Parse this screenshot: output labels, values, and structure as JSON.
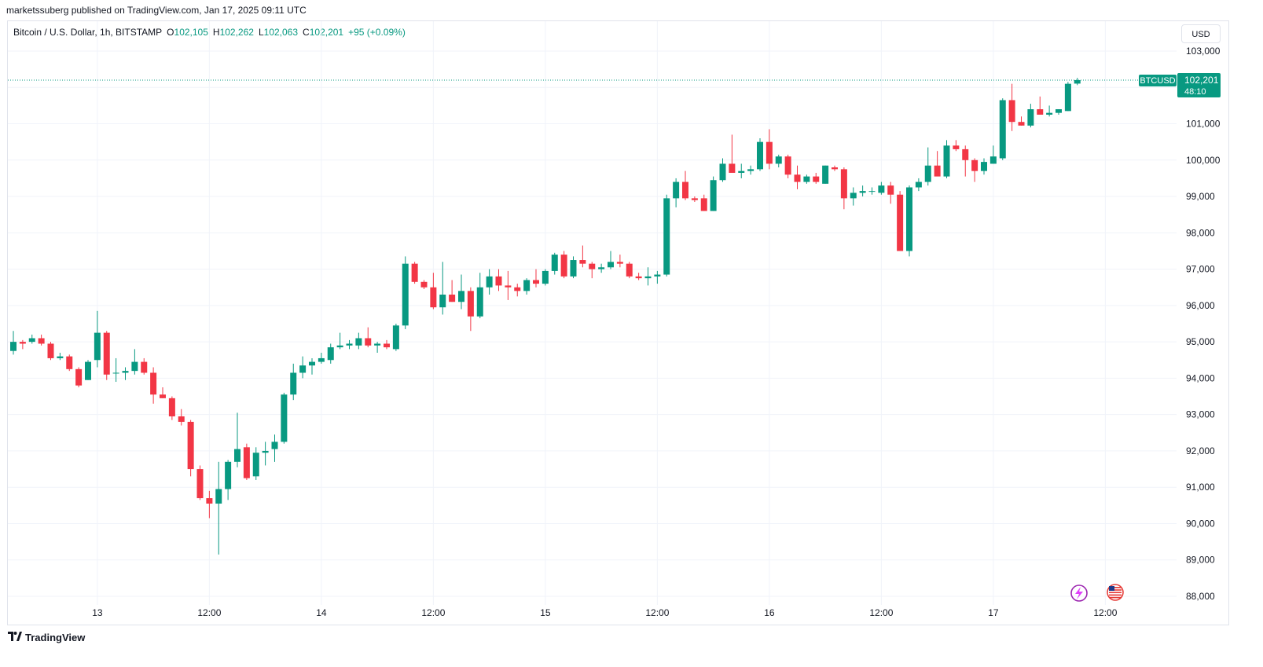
{
  "publisher_line": "marketssuberg published on TradingView.com, Jan 17, 2025 09:11 UTC",
  "legend": {
    "symbol_desc": "Bitcoin / U.S. Dollar, 1h, BITSTAMP",
    "o_label": "O",
    "o_value": "102,105",
    "h_label": "H",
    "h_value": "102,262",
    "l_label": "L",
    "l_value": "102,063",
    "c_label": "C",
    "c_value": "102,201",
    "change": "+95 (+0.09%)"
  },
  "currency_button": "USD",
  "price_tag": {
    "symbol": "BTCUSD",
    "price": "102,201",
    "countdown": "48:10"
  },
  "footer": {
    "brand": "TradingView"
  },
  "colors": {
    "up": "#089981",
    "down": "#f23645",
    "grid": "#f0f3fa",
    "text": "#131722",
    "axis_text": "#131722"
  },
  "icons": [
    "lightning-icon",
    "us-flag-icon",
    "tradingview-logo-icon"
  ],
  "chart_data": {
    "type": "candlestick",
    "timeframe": "1h",
    "ylim": [
      88000,
      103600
    ],
    "y_ticks": [
      {
        "value": 103000,
        "label": "103,000"
      },
      {
        "value": 102000,
        "label": "102,000"
      },
      {
        "value": 101000,
        "label": "101,000"
      },
      {
        "value": 100000,
        "label": "100,000"
      },
      {
        "value": 99000,
        "label": "99,000"
      },
      {
        "value": 98000,
        "label": "98,000"
      },
      {
        "value": 97000,
        "label": "97,000"
      },
      {
        "value": 96000,
        "label": "96,000"
      },
      {
        "value": 95000,
        "label": "95,000"
      },
      {
        "value": 94000,
        "label": "94,000"
      },
      {
        "value": 93000,
        "label": "93,000"
      },
      {
        "value": 92000,
        "label": "92,000"
      },
      {
        "value": 91000,
        "label": "91,000"
      },
      {
        "value": 90000,
        "label": "90,000"
      },
      {
        "value": 89000,
        "label": "89,000"
      },
      {
        "value": 88000,
        "label": "88,000"
      }
    ],
    "x_ticks": [
      {
        "bar": 9,
        "label": "13"
      },
      {
        "bar": 21,
        "label": "12:00"
      },
      {
        "bar": 33,
        "label": "14"
      },
      {
        "bar": 45,
        "label": "12:00"
      },
      {
        "bar": 57,
        "label": "15"
      },
      {
        "bar": 69,
        "label": "12:00"
      },
      {
        "bar": 81,
        "label": "16"
      },
      {
        "bar": 93,
        "label": "12:00"
      },
      {
        "bar": 105,
        "label": "17"
      },
      {
        "bar": 117,
        "label": "12:00"
      }
    ],
    "last_price": 102201,
    "candles": [
      [
        94750,
        95300,
        94650,
        95000
      ],
      [
        95000,
        95050,
        94800,
        94950
      ],
      [
        95000,
        95200,
        94950,
        95100
      ],
      [
        95100,
        95200,
        94900,
        94950
      ],
      [
        94950,
        95000,
        94500,
        94550
      ],
      [
        94550,
        94700,
        94500,
        94600
      ],
      [
        94600,
        94650,
        94200,
        94250
      ],
      [
        94250,
        94300,
        93750,
        93800
      ],
      [
        93950,
        94500,
        93950,
        94450
      ],
      [
        94500,
        95850,
        94300,
        95250
      ],
      [
        95250,
        95300,
        93950,
        94100
      ],
      [
        94150,
        94550,
        93900,
        94150
      ],
      [
        94150,
        94300,
        93950,
        94200
      ],
      [
        94200,
        94800,
        94100,
        94450
      ],
      [
        94450,
        94550,
        94100,
        94150
      ],
      [
        94150,
        94300,
        93300,
        93550
      ],
      [
        93550,
        93750,
        93450,
        93450
      ],
      [
        93450,
        93500,
        92850,
        92950
      ],
      [
        92950,
        93150,
        92700,
        92800
      ],
      [
        92800,
        92850,
        91300,
        91500
      ],
      [
        91500,
        91600,
        90650,
        90700
      ],
      [
        90700,
        90900,
        90150,
        90550
      ],
      [
        90550,
        91700,
        89150,
        90950
      ],
      [
        90950,
        91750,
        90650,
        91700
      ],
      [
        91700,
        93050,
        91550,
        92050
      ],
      [
        92100,
        92200,
        91200,
        91250
      ],
      [
        91300,
        92100,
        91200,
        91950
      ],
      [
        91950,
        92250,
        91600,
        92000
      ],
      [
        92050,
        92450,
        91700,
        92250
      ],
      [
        92250,
        93600,
        92200,
        93550
      ],
      [
        93550,
        94400,
        93400,
        94150
      ],
      [
        94150,
        94600,
        94000,
        94350
      ],
      [
        94350,
        94550,
        94100,
        94450
      ],
      [
        94450,
        94700,
        94400,
        94550
      ],
      [
        94500,
        94950,
        94400,
        94850
      ],
      [
        94850,
        95250,
        94800,
        94900
      ],
      [
        94900,
        95050,
        94800,
        94950
      ],
      [
        94900,
        95250,
        94800,
        95100
      ],
      [
        95100,
        95400,
        94850,
        94900
      ],
      [
        94900,
        95000,
        94700,
        94950
      ],
      [
        94950,
        95050,
        94800,
        94850
      ],
      [
        94800,
        95500,
        94750,
        95450
      ],
      [
        95450,
        97350,
        95350,
        97150
      ],
      [
        97150,
        97200,
        96600,
        96650
      ],
      [
        96650,
        96700,
        96450,
        96500
      ],
      [
        96500,
        96900,
        95900,
        95950
      ],
      [
        95950,
        97200,
        95750,
        96300
      ],
      [
        96300,
        96700,
        96100,
        96100
      ],
      [
        96100,
        96850,
        95900,
        96400
      ],
      [
        96400,
        96500,
        95300,
        95700
      ],
      [
        95700,
        96900,
        95650,
        96500
      ],
      [
        96500,
        97000,
        96300,
        96800
      ],
      [
        96800,
        97000,
        96400,
        96550
      ],
      [
        96550,
        96950,
        96150,
        96500
      ],
      [
        96500,
        96600,
        96250,
        96400
      ],
      [
        96400,
        96750,
        96300,
        96700
      ],
      [
        96700,
        97000,
        96500,
        96600
      ],
      [
        96600,
        97000,
        96550,
        96950
      ],
      [
        96950,
        97450,
        96850,
        97400
      ],
      [
        97400,
        97500,
        96750,
        96800
      ],
      [
        96800,
        97350,
        96750,
        97250
      ],
      [
        97250,
        97650,
        97050,
        97150
      ],
      [
        97150,
        97200,
        96750,
        97000
      ],
      [
        97000,
        97150,
        96900,
        97050
      ],
      [
        97050,
        97500,
        97000,
        97200
      ],
      [
        97200,
        97400,
        97050,
        97150
      ],
      [
        97150,
        97200,
        96750,
        96800
      ],
      [
        96800,
        96900,
        96700,
        96750
      ],
      [
        96750,
        97050,
        96550,
        96800
      ],
      [
        96800,
        96950,
        96600,
        96850
      ],
      [
        96850,
        99050,
        96800,
        98950
      ],
      [
        98950,
        99500,
        98700,
        99400
      ],
      [
        99400,
        99700,
        98900,
        98950
      ],
      [
        98950,
        99000,
        98850,
        98900
      ],
      [
        98950,
        99050,
        98600,
        98600
      ],
      [
        98600,
        99550,
        98600,
        99450
      ],
      [
        99450,
        100050,
        99400,
        99900
      ],
      [
        99900,
        100700,
        99650,
        99650
      ],
      [
        99650,
        99900,
        99500,
        99700
      ],
      [
        99700,
        99850,
        99600,
        99750
      ],
      [
        99750,
        100600,
        99700,
        100500
      ],
      [
        100500,
        100850,
        99750,
        99900
      ],
      [
        99900,
        100150,
        99800,
        100100
      ],
      [
        100100,
        100150,
        99500,
        99600
      ],
      [
        99600,
        99850,
        99200,
        99400
      ],
      [
        99400,
        99600,
        99350,
        99550
      ],
      [
        99550,
        99650,
        99350,
        99400
      ],
      [
        99350,
        99850,
        99350,
        99850
      ],
      [
        99800,
        99850,
        99700,
        99750
      ],
      [
        99750,
        99800,
        98650,
        98950
      ],
      [
        98950,
        99250,
        98750,
        99100
      ],
      [
        99100,
        99300,
        99000,
        99150
      ],
      [
        99150,
        99250,
        99050,
        99150
      ],
      [
        99100,
        99400,
        99050,
        99300
      ],
      [
        99300,
        99400,
        98800,
        99050
      ],
      [
        99050,
        99150,
        97500,
        97500
      ],
      [
        97500,
        99300,
        97350,
        99250
      ],
      [
        99250,
        99500,
        99150,
        99400
      ],
      [
        99400,
        100350,
        99300,
        99850
      ],
      [
        99850,
        100250,
        99650,
        99550
      ],
      [
        99550,
        100550,
        99500,
        100400
      ],
      [
        100400,
        100550,
        100250,
        100300
      ],
      [
        100300,
        100400,
        99550,
        100000
      ],
      [
        100000,
        100050,
        99400,
        99700
      ],
      [
        99700,
        100050,
        99600,
        99950
      ],
      [
        99900,
        100400,
        99900,
        100100
      ],
      [
        100050,
        101700,
        100000,
        101650
      ],
      [
        101650,
        102100,
        100800,
        101050
      ],
      [
        101050,
        101200,
        100950,
        100950
      ],
      [
        100950,
        101550,
        100900,
        101400
      ],
      [
        101400,
        101750,
        101250,
        101250
      ],
      [
        101250,
        101500,
        101200,
        101300
      ],
      [
        101300,
        101400,
        101250,
        101400
      ],
      [
        101350,
        102150,
        101350,
        102100
      ],
      [
        102105,
        102262,
        102063,
        102201
      ]
    ]
  }
}
